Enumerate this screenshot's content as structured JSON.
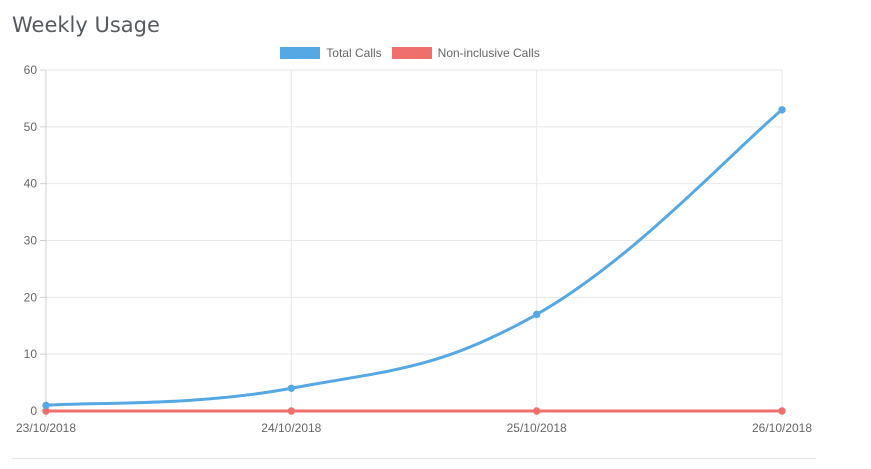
{
  "card": {
    "title": "Weekly Usage"
  },
  "chart_data": {
    "type": "line",
    "title": "Weekly Usage",
    "xlabel": "",
    "ylabel": "",
    "categories": [
      "23/10/2018",
      "24/10/2018",
      "25/10/2018",
      "26/10/2018"
    ],
    "series": [
      {
        "name": "Total Calls",
        "values": [
          1,
          4,
          17,
          53
        ],
        "color": "#55a8e3"
      },
      {
        "name": "Non-inclusive Calls",
        "values": [
          0,
          0,
          0,
          0
        ],
        "color": "#ef6f6c"
      }
    ],
    "ylim": [
      0,
      60
    ],
    "yticks": [
      0,
      10,
      20,
      30,
      40,
      50,
      60
    ],
    "grid": true,
    "legend": "top-center"
  }
}
